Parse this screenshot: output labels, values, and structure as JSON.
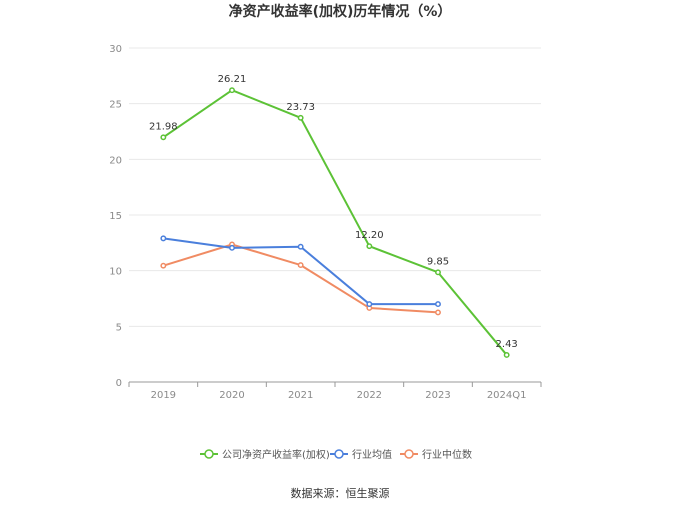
{
  "chart_data": {
    "type": "line",
    "title": "净资产收益率(加权)历年情况（%）",
    "categories": [
      "2019",
      "2020",
      "2021",
      "2022",
      "2023",
      "2024Q1"
    ],
    "ylim": [
      0,
      30
    ],
    "yticks": [
      0,
      5,
      10,
      15,
      20,
      25,
      30
    ],
    "grid": true,
    "legend_position": "bottom",
    "series": [
      {
        "name": "公司净资产收益率(加权)",
        "color": "#5cc236",
        "values": [
          21.98,
          26.21,
          23.73,
          12.2,
          9.85,
          2.43
        ],
        "labels": [
          "21.98",
          "26.21",
          "23.73",
          "12.20",
          "9.85",
          "2.43"
        ]
      },
      {
        "name": "行业均值",
        "color": "#4a7fdc",
        "values": [
          12.9,
          12.05,
          12.15,
          7.0,
          7.0,
          null
        ]
      },
      {
        "name": "行业中位数",
        "color": "#f08b63",
        "values": [
          10.45,
          12.35,
          10.5,
          6.65,
          6.25,
          null
        ]
      }
    ],
    "source": "数据来源：恒生聚源"
  }
}
